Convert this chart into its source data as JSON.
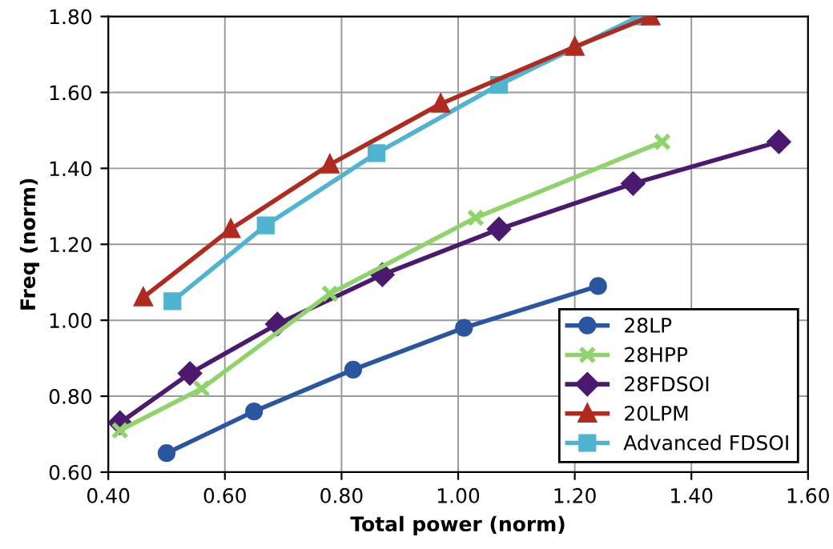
{
  "chart_data": {
    "type": "line",
    "xlabel": "Total power (norm)",
    "ylabel": "Freq (norm)",
    "xlim": [
      0.4,
      1.6
    ],
    "ylim": [
      0.6,
      1.8
    ],
    "xticks": [
      {
        "value": 0.4,
        "label": "0.40"
      },
      {
        "value": 0.6,
        "label": "0.60"
      },
      {
        "value": 0.8,
        "label": "0.80"
      },
      {
        "value": 1.0,
        "label": "1.00"
      },
      {
        "value": 1.2,
        "label": "1.20"
      },
      {
        "value": 1.4,
        "label": "1.40"
      },
      {
        "value": 1.6,
        "label": "1.60"
      }
    ],
    "yticks": [
      {
        "value": 0.6,
        "label": "0.60"
      },
      {
        "value": 0.8,
        "label": "0.80"
      },
      {
        "value": 1.0,
        "label": "1.00"
      },
      {
        "value": 1.2,
        "label": "1.20"
      },
      {
        "value": 1.4,
        "label": "1.40"
      },
      {
        "value": 1.6,
        "label": "1.60"
      },
      {
        "value": 1.8,
        "label": "1.80"
      }
    ],
    "grid": true,
    "legend": "bottom right",
    "series": [
      {
        "name": "28LP",
        "color": "#2a55a0",
        "marker": "circle",
        "x": [
          0.5,
          0.65,
          0.82,
          1.01,
          1.24
        ],
        "values": [
          0.65,
          0.76,
          0.87,
          0.98,
          1.09
        ]
      },
      {
        "name": "28HPP",
        "color": "#8fd46a",
        "marker": "cross",
        "x": [
          0.42,
          0.56,
          0.78,
          1.03,
          1.35
        ],
        "values": [
          0.71,
          0.82,
          1.07,
          1.27,
          1.47
        ]
      },
      {
        "name": "28FDSOI",
        "color": "#4b1a6e",
        "marker": "diamond",
        "x": [
          0.42,
          0.54,
          0.69,
          0.87,
          1.07,
          1.3,
          1.55
        ],
        "values": [
          0.73,
          0.86,
          0.99,
          1.12,
          1.24,
          1.36,
          1.47
        ]
      },
      {
        "name": "20LPM",
        "color": "#b02a20",
        "marker": "triangle",
        "x": [
          0.46,
          0.61,
          0.78,
          0.97,
          1.2,
          1.33
        ],
        "values": [
          1.06,
          1.24,
          1.41,
          1.57,
          1.72,
          1.8
        ]
      },
      {
        "name": "Advanced FDSOI",
        "color": "#4fb4d0",
        "marker": "square",
        "x": [
          0.51,
          0.67,
          0.86,
          1.07,
          1.31
        ],
        "values": [
          1.05,
          1.25,
          1.44,
          1.62,
          1.8
        ]
      }
    ]
  }
}
